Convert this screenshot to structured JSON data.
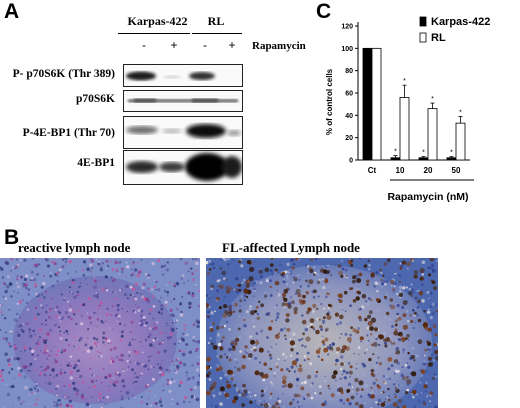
{
  "panels": {
    "a": "A",
    "b": "B",
    "c": "C"
  },
  "blot": {
    "cell_lines": [
      "Karpas-422",
      "RL"
    ],
    "treatment_signs": [
      "-",
      "+",
      "-",
      "+"
    ],
    "treatment_label": "Rapamycin",
    "rows": [
      {
        "label": "P- p70S6K (Thr 389)"
      },
      {
        "label": "p70S6K"
      },
      {
        "label": "P-4E-BP1 (Thr 70)"
      },
      {
        "label": "4E-BP1"
      }
    ]
  },
  "chart_data": {
    "type": "bar",
    "categories": [
      "Ct",
      "10",
      "20",
      "50"
    ],
    "series": [
      {
        "name": "Karpas-422",
        "values": [
          100,
          2,
          2,
          2
        ],
        "errors": [
          0,
          2,
          1,
          1
        ],
        "color": "#000000"
      },
      {
        "name": "RL",
        "values": [
          100,
          56,
          46,
          33
        ],
        "errors": [
          0,
          11,
          5,
          6
        ],
        "color": "#ffffff"
      }
    ],
    "significance": [
      "",
      "*",
      "*",
      "*"
    ],
    "ylabel": "% of control cells",
    "xlabel": "Rapamycin (nM)",
    "ylim": [
      0,
      120
    ],
    "yticks": [
      0,
      20,
      40,
      60,
      80,
      100,
      120
    ],
    "legend": "top-right"
  },
  "tissue": {
    "left_label": "reactive lymph node",
    "right_label": "FL-affected  Lymph node"
  }
}
